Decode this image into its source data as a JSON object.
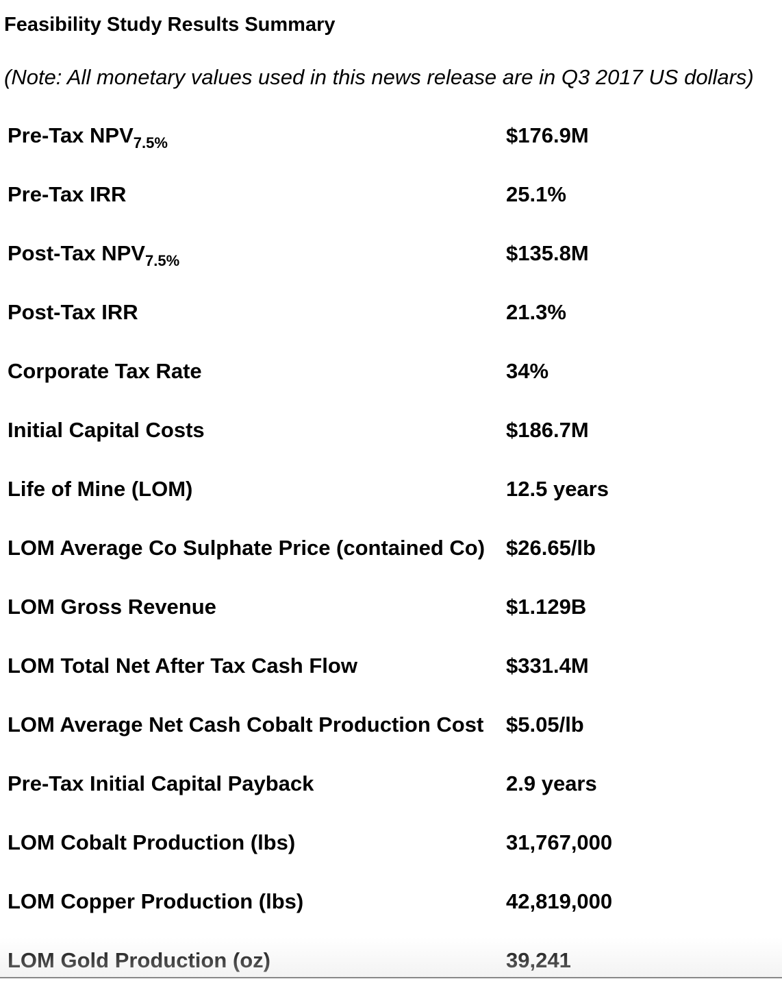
{
  "title": "Feasibility Study Results Summary",
  "note": "(Note: All monetary values used in this news release are in Q3 2017 US dollars)",
  "rows": [
    {
      "label": "Pre-Tax NPV",
      "sub": "7.5%",
      "value": "$176.9M"
    },
    {
      "label": "Pre-Tax IRR",
      "value": "25.1%"
    },
    {
      "label": "Post-Tax NPV",
      "sub": "7.5%",
      "value": "$135.8M"
    },
    {
      "label": "Post-Tax IRR",
      "value": "21.3%"
    },
    {
      "label": "Corporate Tax Rate",
      "value": "34%"
    },
    {
      "label": "Initial Capital Costs",
      "value": "$186.7M"
    },
    {
      "label": "Life of Mine (LOM)",
      "value": "12.5 years"
    },
    {
      "label": "LOM Average Co Sulphate Price (contained Co)",
      "value": "$26.65/lb"
    },
    {
      "label": "LOM Gross Revenue",
      "value": "$1.129B"
    },
    {
      "label": "LOM Total Net After Tax Cash Flow",
      "value": "$331.4M"
    },
    {
      "label": "LOM Average Net Cash Cobalt Production Cost",
      "value": "$5.05/lb"
    },
    {
      "label": "Pre-Tax Initial Capital Payback",
      "value": "2.9 years"
    },
    {
      "label": "LOM Cobalt Production (lbs)",
      "value": "31,767,000"
    },
    {
      "label": "LOM Copper Production (lbs)",
      "value": "42,819,000"
    },
    {
      "label": "LOM Gold Production (oz)",
      "value": "39,241"
    }
  ]
}
